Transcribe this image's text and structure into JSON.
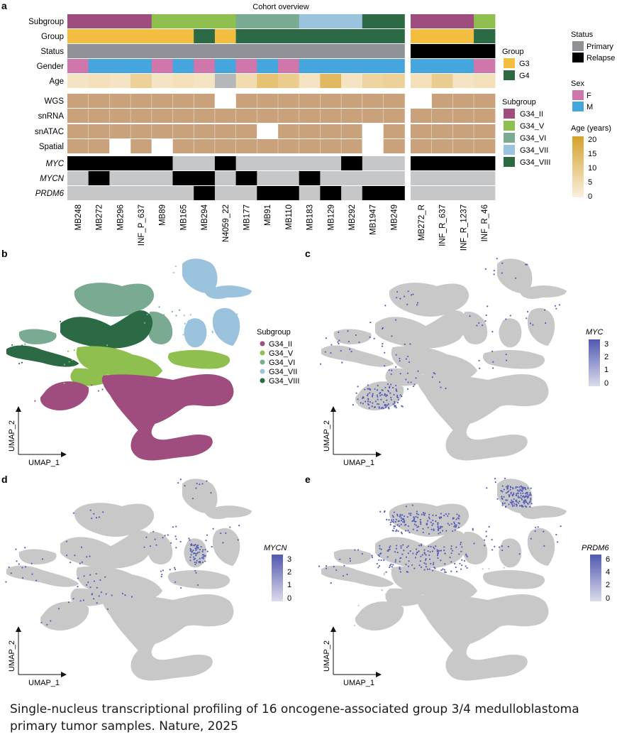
{
  "panel_letters": {
    "a": "a",
    "b": "b",
    "c": "c",
    "d": "d",
    "e": "e"
  },
  "heatmap": {
    "title": "Cohort overview",
    "row_labels": [
      "Subgroup",
      "Group",
      "Status",
      "Gender",
      "Age",
      "WGS",
      "snRNA",
      "snATAC",
      "Spatial",
      "MYC",
      "MYCN",
      "PRDM6"
    ],
    "primary_samples": [
      "MB248",
      "MB272",
      "MB296",
      "INF_P_637",
      "MB89",
      "MB165",
      "MB294",
      "N4059_22",
      "MB177",
      "MB91",
      "MB110",
      "MB183",
      "MB129",
      "MB292",
      "MB1947",
      "MB249"
    ],
    "relapse_samples": [
      "MB272_R",
      "INF_R_637",
      "INF_R_1237",
      "INF_R_46"
    ],
    "colors": {
      "G34_II": "#9f4d7f",
      "G34_V": "#8fbf4f",
      "G34_VI": "#7aaa92",
      "G34_VII": "#9cc3dd",
      "G34_VIII": "#2b6a44",
      "G3": "#f3bd3f",
      "G4": "#2b6a44",
      "Primary": "#8e9195",
      "Relapse": "#000000",
      "F": "#cf76aa",
      "M": "#45a6de",
      "NA": "#b5b8bb",
      "seq": "#c9a27c",
      "absent": "#ffffff",
      "amp": "#000000",
      "noamp": "#c6c7c9"
    },
    "subgroup": [
      "G34_II",
      "G34_II",
      "G34_II",
      "G34_II",
      "G34_V",
      "G34_V",
      "G34_V",
      "G34_V",
      "G34_VI",
      "G34_VI",
      "G34_VI",
      "G34_VII",
      "G34_VII",
      "G34_VII",
      "G34_VIII",
      "G34_VIII",
      "G34_II",
      "G34_II",
      "G34_II",
      "G34_V"
    ],
    "group": [
      "G3",
      "G3",
      "G3",
      "G3",
      "G3",
      "G3",
      "G4",
      "G3",
      "G4",
      "G4",
      "G4",
      "G4",
      "G4",
      "G4",
      "G4",
      "G4",
      "G3",
      "G3",
      "G3",
      "G4"
    ],
    "status": [
      "Primary",
      "Primary",
      "Primary",
      "Primary",
      "Primary",
      "Primary",
      "Primary",
      "Primary",
      "Primary",
      "Primary",
      "Primary",
      "Primary",
      "Primary",
      "Primary",
      "Primary",
      "Primary",
      "Relapse",
      "Relapse",
      "Relapse",
      "Relapse"
    ],
    "gender": [
      "F",
      "M",
      "M",
      "M",
      "F",
      "M",
      "F",
      "M",
      "F",
      "M",
      "F",
      "M",
      "M",
      "M",
      "M",
      "M",
      "M",
      "M",
      "M",
      "F"
    ],
    "age": [
      3,
      4,
      3,
      8,
      3,
      4,
      3,
      null,
      5,
      12,
      9,
      3,
      14,
      3,
      7,
      8,
      4,
      9,
      3,
      4
    ],
    "wgs": [
      1,
      1,
      1,
      1,
      1,
      1,
      1,
      0,
      1,
      1,
      1,
      1,
      1,
      1,
      1,
      1,
      0,
      1,
      1,
      1
    ],
    "snrna": [
      1,
      1,
      1,
      1,
      1,
      1,
      1,
      1,
      1,
      1,
      1,
      1,
      1,
      1,
      1,
      1,
      1,
      1,
      1,
      1
    ],
    "snatac": [
      1,
      1,
      1,
      1,
      1,
      1,
      1,
      1,
      1,
      0,
      1,
      1,
      1,
      1,
      0,
      1,
      1,
      1,
      1,
      1
    ],
    "spatial": [
      1,
      1,
      0,
      1,
      0,
      1,
      1,
      1,
      1,
      1,
      1,
      1,
      1,
      1,
      0,
      1,
      1,
      1,
      1,
      1
    ],
    "myc": [
      1,
      1,
      1,
      1,
      1,
      0,
      0,
      1,
      0,
      0,
      0,
      0,
      0,
      1,
      0,
      0,
      1,
      1,
      1,
      1
    ],
    "mycn": [
      0,
      1,
      0,
      0,
      0,
      1,
      1,
      0,
      1,
      0,
      0,
      1,
      0,
      0,
      0,
      0,
      0,
      0,
      0,
      0
    ],
    "prdm6": [
      0,
      0,
      0,
      0,
      0,
      0,
      1,
      0,
      0,
      1,
      1,
      0,
      1,
      0,
      1,
      1,
      0,
      0,
      0,
      0
    ],
    "legend": {
      "status_title": "Status",
      "status_items": [
        "Primary",
        "Relapse"
      ],
      "group_title": "Group",
      "group_items": [
        "G3",
        "G4"
      ],
      "sex_title": "Sex",
      "sex_items": [
        "F",
        "M"
      ],
      "subgroup_title": "Subgroup",
      "subgroup_items": [
        "G34_II",
        "G34_V",
        "G34_VI",
        "G34_VII",
        "G34_VIII"
      ],
      "age_title": "Age (years)",
      "age_ticks": [
        "20",
        "15",
        "10",
        "5",
        "0"
      ]
    }
  },
  "umap": {
    "axis_x": "UMAP_1",
    "axis_y": "UMAP_2",
    "subgroup_legend_title": "Subgroup",
    "subgroup_legend_items": [
      "G34_II",
      "G34_V",
      "G34_VI",
      "G34_VII",
      "G34_VIII"
    ],
    "myc_title": "MYC",
    "myc_ticks": [
      "3",
      "2",
      "1",
      "0"
    ],
    "mycn_title": "MYCN",
    "mycn_ticks": [
      "3",
      "2",
      "1",
      "0"
    ],
    "prdm6_title": "PRDM6",
    "prdm6_ticks": [
      "6",
      "4",
      "2",
      "0"
    ],
    "grey": "#c8c8c8",
    "expr_color": "#5860b8"
  },
  "caption": "Single-nucleus transcriptional profiling of 16 oncogene-associated group 3/4 medulloblastoma primary tumor samples. Nature, 2025"
}
